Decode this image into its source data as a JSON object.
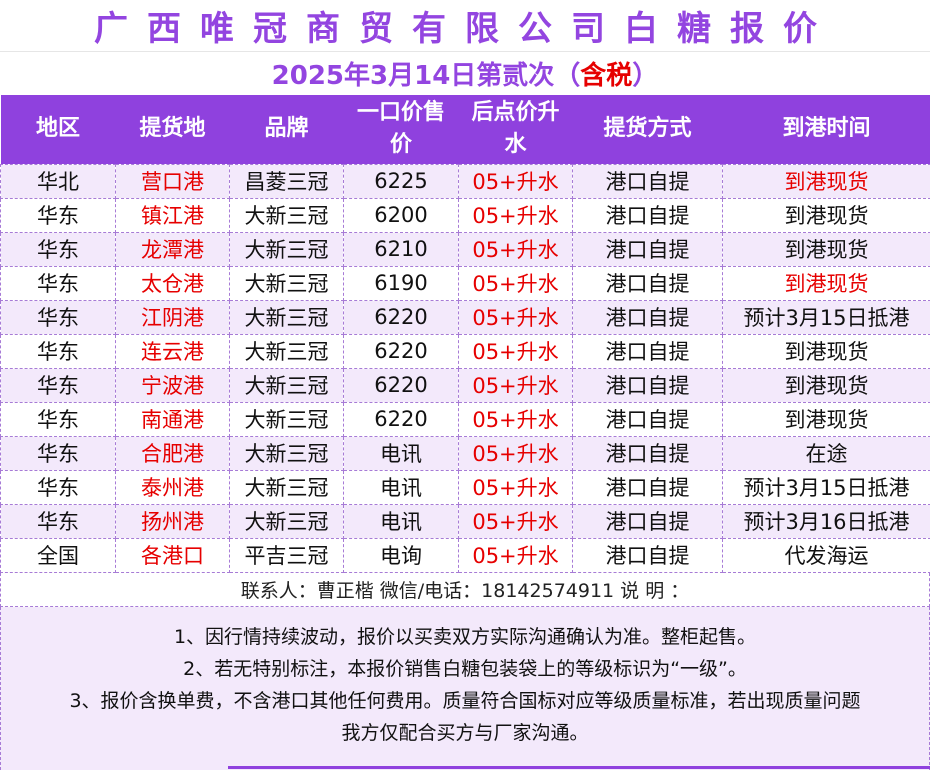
{
  "title": "广西唯冠商贸有限公司白糖报价",
  "subtitle": {
    "main": "2025年3月14日第贰次（",
    "tax": "含税",
    "close": "）"
  },
  "headers": [
    "地区",
    "提货地",
    "品牌",
    "一口价售价",
    "后点价升水",
    "提货方式",
    "到港时间"
  ],
  "rows": [
    {
      "region": "华北",
      "port": "营口港",
      "brand": "昌菱三冠",
      "price": "6225",
      "premium": "05+升水",
      "method": "港口自提",
      "arrival": "到港现货",
      "arrival_red": true
    },
    {
      "region": "华东",
      "port": "镇江港",
      "brand": "大新三冠",
      "price": "6200",
      "premium": "05+升水",
      "method": "港口自提",
      "arrival": "到港现货",
      "arrival_red": false
    },
    {
      "region": "华东",
      "port": "龙潭港",
      "brand": "大新三冠",
      "price": "6210",
      "premium": "05+升水",
      "method": "港口自提",
      "arrival": "到港现货",
      "arrival_red": false
    },
    {
      "region": "华东",
      "port": "太仓港",
      "brand": "大新三冠",
      "price": "6190",
      "premium": "05+升水",
      "method": "港口自提",
      "arrival": "到港现货",
      "arrival_red": true
    },
    {
      "region": "华东",
      "port": "江阴港",
      "brand": "大新三冠",
      "price": "6220",
      "premium": "05+升水",
      "method": "港口自提",
      "arrival": "预计3月15日抵港",
      "arrival_red": false
    },
    {
      "region": "华东",
      "port": "连云港",
      "brand": "大新三冠",
      "price": "6220",
      "premium": "05+升水",
      "method": "港口自提",
      "arrival": "到港现货",
      "arrival_red": false
    },
    {
      "region": "华东",
      "port": "宁波港",
      "brand": "大新三冠",
      "price": "6220",
      "premium": "05+升水",
      "method": "港口自提",
      "arrival": "到港现货",
      "arrival_red": false
    },
    {
      "region": "华东",
      "port": "南通港",
      "brand": "大新三冠",
      "price": "6220",
      "premium": "05+升水",
      "method": "港口自提",
      "arrival": "到港现货",
      "arrival_red": false
    },
    {
      "region": "华东",
      "port": "合肥港",
      "brand": "大新三冠",
      "price": "电讯",
      "premium": "05+升水",
      "method": "港口自提",
      "arrival": "在途",
      "arrival_red": false
    },
    {
      "region": "华东",
      "port": "泰州港",
      "brand": "大新三冠",
      "price": "电讯",
      "premium": "05+升水",
      "method": "港口自提",
      "arrival": "预计3月15日抵港",
      "arrival_red": false
    },
    {
      "region": "华东",
      "port": "扬州港",
      "brand": "大新三冠",
      "price": "电讯",
      "premium": "05+升水",
      "method": "港口自提",
      "arrival": "预计3月16日抵港",
      "arrival_red": false
    },
    {
      "region": "全国",
      "port": "各港口",
      "brand": "平吉三冠",
      "price": "电询",
      "premium": "05+升水",
      "method": "港口自提",
      "arrival": "代发海运",
      "arrival_red": false
    }
  ],
  "contact": "联系人：曹正楷  微信/电话：18142574911  说  明 ：",
  "notes": [
    "1、因行情持续波动，报价以买卖双方实际沟通确认为准。整柜起售。",
    "2、若无特别标注，本报价销售白糖包装袋上的等级标识为“一级”。",
    "3、报价含换单费，不含港口其他任何费用。质量符合国标对应等级质量标准，若出现质量问题",
    "我方仅配合买方与厂家沟通。"
  ],
  "colors": {
    "accent": "#8f41de",
    "red": "#e60000",
    "row_alt": "#f3e9fb"
  }
}
